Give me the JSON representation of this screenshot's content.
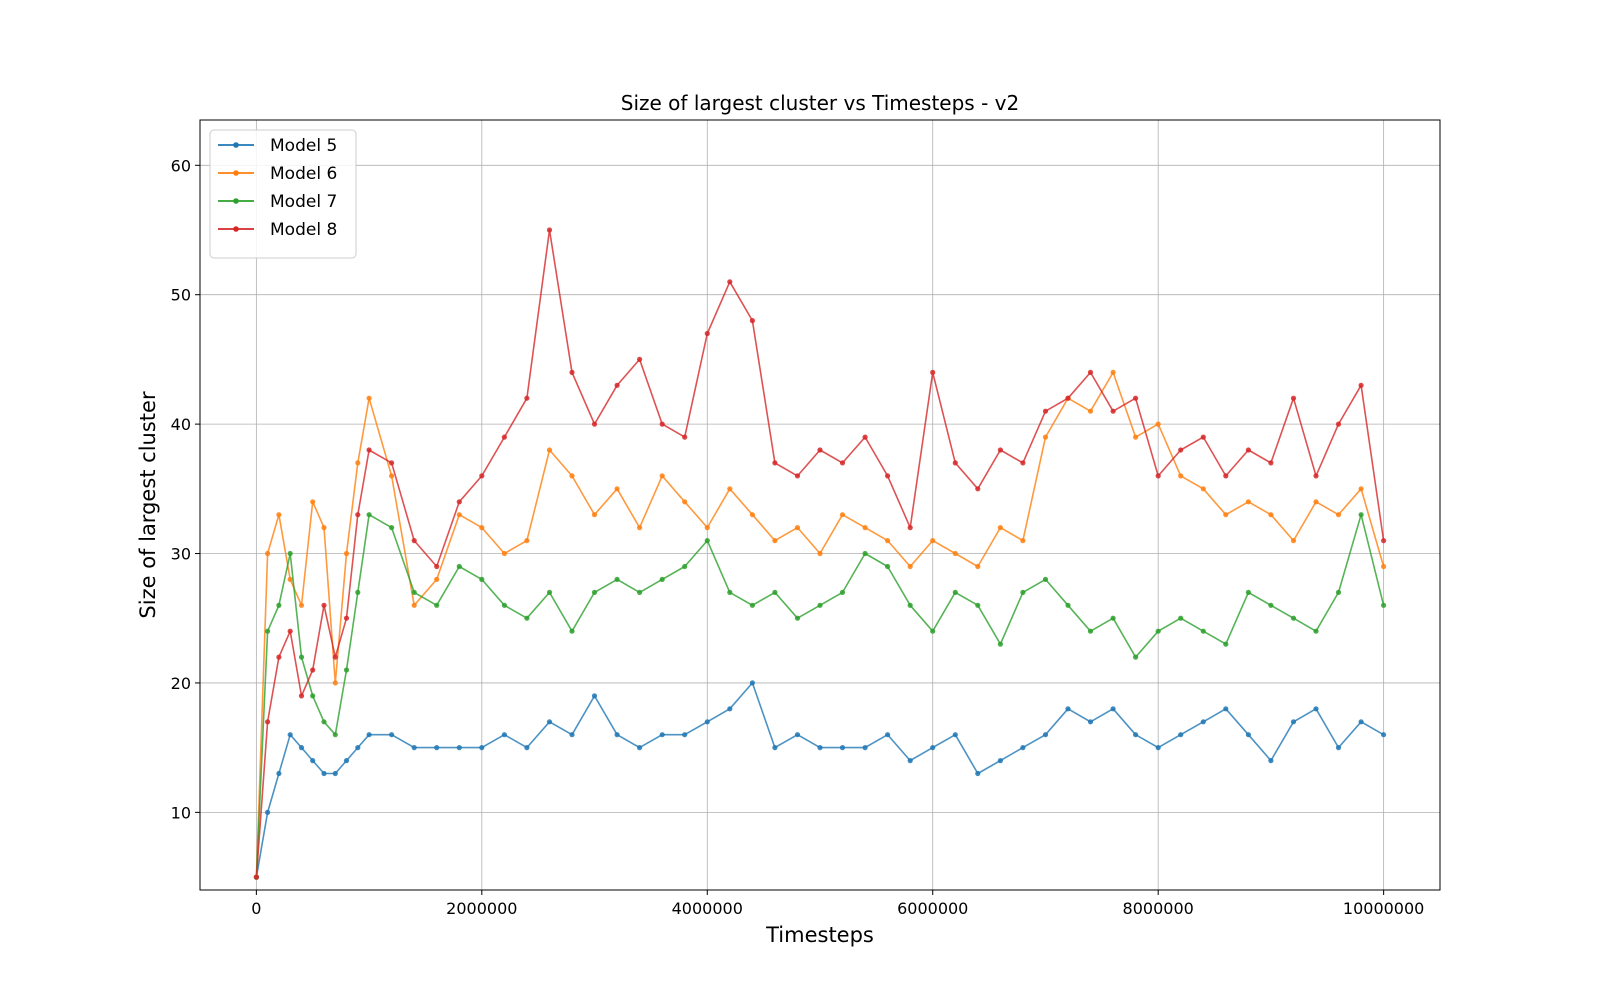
{
  "chart_data": {
    "type": "line",
    "title": "Size of largest cluster vs Timesteps - v2",
    "xlabel": "Timesteps",
    "ylabel": "Size of largest cluster",
    "xlim": [
      -500000,
      10500000
    ],
    "ylim": [
      4,
      63.5
    ],
    "xticks": [
      0,
      2000000,
      4000000,
      6000000,
      8000000,
      10000000
    ],
    "xtick_labels": [
      "0",
      "2000000",
      "4000000",
      "6000000",
      "8000000",
      "10000000"
    ],
    "yticks": [
      10,
      20,
      30,
      40,
      50,
      60
    ],
    "ytick_labels": [
      "10",
      "20",
      "30",
      "40",
      "50",
      "60"
    ],
    "grid": true,
    "legend_position": "top-left",
    "series": [
      {
        "name": "Model 5",
        "color": "#1f77b4",
        "x": [
          0,
          100000,
          200000,
          300000,
          400000,
          500000,
          600000,
          700000,
          800000,
          900000,
          1000000,
          1200000,
          1400000,
          1600000,
          1800000,
          2000000,
          2200000,
          2400000,
          2600000,
          2800000,
          3000000,
          3200000,
          3400000,
          3600000,
          3800000,
          4000000,
          4200000,
          4400000,
          4600000,
          4800000,
          5000000,
          5200000,
          5400000,
          5600000,
          5800000,
          6000000,
          6200000,
          6400000,
          6600000,
          6800000,
          7000000,
          7200000,
          7400000,
          7600000,
          7800000,
          8000000,
          8200000,
          8400000,
          8600000,
          8800000,
          9000000,
          9200000,
          9400000,
          9600000,
          9800000,
          10000000
        ],
        "values": [
          5,
          10,
          13,
          16,
          15,
          14,
          13,
          13,
          14,
          15,
          16,
          16,
          15,
          15,
          15,
          15,
          16,
          15,
          17,
          16,
          19,
          16,
          15,
          16,
          16,
          17,
          18,
          20,
          15,
          16,
          15,
          15,
          15,
          16,
          14,
          15,
          16,
          13,
          14,
          15,
          16,
          18,
          17,
          18,
          16,
          15,
          16,
          17,
          18,
          16,
          14,
          17,
          18,
          15,
          17,
          16
        ]
      },
      {
        "name": "Model 6",
        "color": "#ff7f0e",
        "x": [
          0,
          100000,
          200000,
          300000,
          400000,
          500000,
          600000,
          700000,
          800000,
          900000,
          1000000,
          1200000,
          1400000,
          1600000,
          1800000,
          2000000,
          2200000,
          2400000,
          2600000,
          2800000,
          3000000,
          3200000,
          3400000,
          3600000,
          3800000,
          4000000,
          4200000,
          4400000,
          4600000,
          4800000,
          5000000,
          5200000,
          5400000,
          5600000,
          5800000,
          6000000,
          6200000,
          6400000,
          6600000,
          6800000,
          7000000,
          7200000,
          7400000,
          7600000,
          7800000,
          8000000,
          8200000,
          8400000,
          8600000,
          8800000,
          9000000,
          9200000,
          9400000,
          9600000,
          9800000,
          10000000
        ],
        "values": [
          5,
          30,
          33,
          28,
          26,
          34,
          32,
          20,
          30,
          37,
          42,
          36,
          26,
          28,
          33,
          32,
          30,
          31,
          38,
          36,
          33,
          35,
          32,
          36,
          34,
          32,
          35,
          33,
          31,
          32,
          30,
          33,
          32,
          31,
          29,
          31,
          30,
          29,
          32,
          31,
          39,
          42,
          41,
          44,
          39,
          40,
          36,
          35,
          33,
          34,
          33,
          31,
          34,
          33,
          35,
          29
        ]
      },
      {
        "name": "Model 7",
        "color": "#2ca02c",
        "x": [
          0,
          100000,
          200000,
          300000,
          400000,
          500000,
          600000,
          700000,
          800000,
          900000,
          1000000,
          1200000,
          1400000,
          1600000,
          1800000,
          2000000,
          2200000,
          2400000,
          2600000,
          2800000,
          3000000,
          3200000,
          3400000,
          3600000,
          3800000,
          4000000,
          4200000,
          4400000,
          4600000,
          4800000,
          5000000,
          5200000,
          5400000,
          5600000,
          5800000,
          6000000,
          6200000,
          6400000,
          6600000,
          6800000,
          7000000,
          7200000,
          7400000,
          7600000,
          7800000,
          8000000,
          8200000,
          8400000,
          8600000,
          8800000,
          9000000,
          9200000,
          9400000,
          9600000,
          9800000,
          10000000
        ],
        "values": [
          5,
          24,
          26,
          30,
          22,
          19,
          17,
          16,
          21,
          27,
          33,
          32,
          27,
          26,
          29,
          28,
          26,
          25,
          27,
          24,
          27,
          28,
          27,
          28,
          29,
          31,
          27,
          26,
          27,
          25,
          26,
          27,
          30,
          29,
          26,
          24,
          27,
          26,
          23,
          27,
          28,
          26,
          24,
          25,
          22,
          24,
          25,
          24,
          23,
          27,
          26,
          25,
          24,
          27,
          33,
          26
        ]
      },
      {
        "name": "Model 8",
        "color": "#d62728",
        "x": [
          0,
          100000,
          200000,
          300000,
          400000,
          500000,
          600000,
          700000,
          800000,
          900000,
          1000000,
          1200000,
          1400000,
          1600000,
          1800000,
          2000000,
          2200000,
          2400000,
          2600000,
          2800000,
          3000000,
          3200000,
          3400000,
          3600000,
          3800000,
          4000000,
          4200000,
          4400000,
          4600000,
          4800000,
          5000000,
          5200000,
          5400000,
          5600000,
          5800000,
          6000000,
          6200000,
          6400000,
          6600000,
          6800000,
          7000000,
          7200000,
          7400000,
          7600000,
          7800000,
          8000000,
          8200000,
          8400000,
          8600000,
          8800000,
          9000000,
          9200000,
          9400000,
          9600000,
          9800000,
          10000000
        ],
        "values": [
          5,
          17,
          22,
          24,
          19,
          21,
          26,
          22,
          25,
          33,
          38,
          37,
          31,
          29,
          34,
          36,
          39,
          42,
          55,
          44,
          40,
          43,
          45,
          40,
          39,
          47,
          51,
          48,
          37,
          36,
          38,
          37,
          39,
          36,
          32,
          44,
          37,
          35,
          38,
          37,
          41,
          42,
          44,
          41,
          42,
          36,
          38,
          39,
          36,
          38,
          37,
          42,
          36,
          40,
          43,
          31
        ]
      }
    ]
  }
}
